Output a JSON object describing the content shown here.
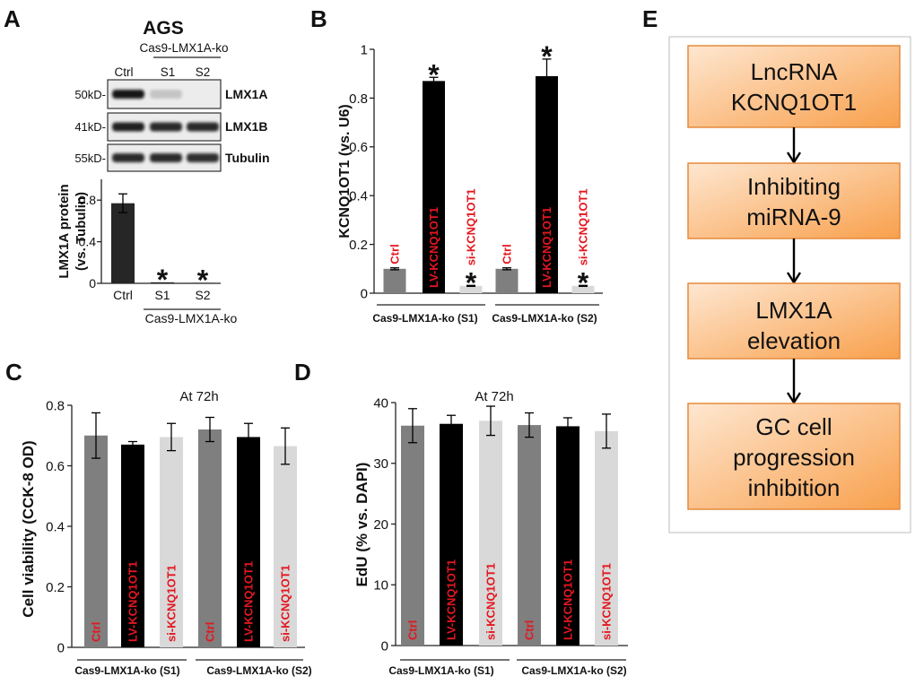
{
  "panel_labels": {
    "a": "A",
    "b": "B",
    "c": "C",
    "d": "D",
    "e": "E"
  },
  "panel_a": {
    "title": "AGS",
    "knockout_label": "Cas9-LMX1A-ko",
    "lanes": [
      "Ctrl",
      "S1",
      "S2"
    ],
    "blot_rows": [
      {
        "marker": "50kD-",
        "protein": "LMX1A",
        "band_intensity": [
          1.0,
          0.18,
          0.0
        ]
      },
      {
        "marker": "41kD-",
        "protein": "LMX1B",
        "band_intensity": [
          0.95,
          0.9,
          0.9
        ]
      },
      {
        "marker": "55kD-",
        "protein": "Tubulin",
        "band_intensity": [
          0.9,
          0.9,
          0.88
        ]
      }
    ]
  },
  "chart_data": [
    {
      "type": "bar",
      "categories": [
        "Ctrl",
        "S1",
        "S2"
      ],
      "values": [
        0.77,
        0.01,
        0.005
      ],
      "errors": [
        0.09,
        0,
        0
      ],
      "significant": [
        false,
        true,
        true
      ],
      "significance_mark": "*",
      "ylabel": [
        "LMX1A protein",
        "(vs. Tubulin)"
      ],
      "ylim": [
        0,
        1.0
      ],
      "yticks": [
        0,
        0.4,
        0.8
      ],
      "ytick_labels": [
        "0",
        "0.4",
        "0.8"
      ],
      "groups": [
        {
          "label": "Cas9-LMX1A-ko",
          "members": [
            1,
            2
          ]
        }
      ],
      "category_label_position": "below-axis",
      "colors": [
        "#262626",
        "#262626",
        "#262626"
      ]
    },
    {
      "type": "bar",
      "categories": [
        "Ctrl",
        "LV-KCNQ1OT1",
        "si-KCNQ1OT1",
        "Ctrl",
        "LV-KCNQ1OT1",
        "si-KCNQ1OT1"
      ],
      "values": [
        0.1,
        0.87,
        0.03,
        0.1,
        0.89,
        0.03
      ],
      "errors": [
        0.004,
        0.015,
        0.002,
        0.004,
        0.07,
        0.002
      ],
      "significant": [
        false,
        true,
        true,
        false,
        true,
        true
      ],
      "significance_mark": "*",
      "ylabel": [
        "KCNQ1OT1 (vs. U6)"
      ],
      "ylim": [
        0,
        1
      ],
      "yticks": [
        0,
        0.2,
        0.4,
        0.6,
        0.8,
        1
      ],
      "ytick_labels": [
        "0",
        "0.2",
        "0.4",
        "0.6",
        "0.8",
        "1"
      ],
      "groups": [
        {
          "label": "Cas9-LMX1A-ko (S1)",
          "members": [
            0,
            1,
            2
          ]
        },
        {
          "label": "Cas9-LMX1A-ko (S2)",
          "members": [
            3,
            4,
            5
          ]
        }
      ],
      "category_label_position": "inside-bar",
      "colors": [
        "#7f7f7f",
        "#000000",
        "#d9d9d9",
        "#7f7f7f",
        "#000000",
        "#d9d9d9"
      ],
      "label_color": "#e3171f"
    },
    {
      "type": "bar",
      "title": "At 72h",
      "categories": [
        "Ctrl",
        "LV-KCNQ1OT1",
        "si-KCNQ1OT1",
        "Ctrl",
        "LV-KCNQ1OT1",
        "si-KCNQ1OT1"
      ],
      "values": [
        0.7,
        0.67,
        0.695,
        0.72,
        0.695,
        0.665
      ],
      "errors": [
        0.075,
        0.01,
        0.045,
        0.04,
        0.045,
        0.06
      ],
      "ylabel": [
        "Cell viability (CCK-8 OD)"
      ],
      "ylim": [
        0,
        0.8
      ],
      "yticks": [
        0,
        0.2,
        0.4,
        0.6,
        0.8
      ],
      "ytick_labels": [
        "0",
        "0.2",
        "0.4",
        "0.6",
        "0.8"
      ],
      "groups": [
        {
          "label": "Cas9-LMX1A-ko (S1)",
          "members": [
            0,
            1,
            2
          ]
        },
        {
          "label": "Cas9-LMX1A-ko (S2)",
          "members": [
            3,
            4,
            5
          ]
        }
      ],
      "category_label_position": "inside-bar",
      "colors": [
        "#7f7f7f",
        "#000000",
        "#d9d9d9",
        "#7f7f7f",
        "#000000",
        "#d9d9d9"
      ],
      "label_color": "#e3171f"
    },
    {
      "type": "bar",
      "title": "At 72h",
      "categories": [
        "Ctrl",
        "LV-KCNQ1OT1",
        "si-KCNQ1OT1",
        "Ctrl",
        "LV-KCNQ1OT1",
        "si-KCNQ1OT1"
      ],
      "values": [
        36.2,
        36.5,
        37.0,
        36.3,
        36.1,
        35.3
      ],
      "errors": [
        2.8,
        1.4,
        2.4,
        2.0,
        1.4,
        2.8
      ],
      "ylabel": [
        "EdU (% vs. DAPI)"
      ],
      "ylim": [
        0,
        40
      ],
      "yticks": [
        0,
        10,
        20,
        30,
        40
      ],
      "ytick_labels": [
        "0",
        "10",
        "20",
        "30",
        "40"
      ],
      "groups": [
        {
          "label": "Cas9-LMX1A-ko (S1)",
          "members": [
            0,
            1,
            2
          ]
        },
        {
          "label": "Cas9-LMX1A-ko (S2)",
          "members": [
            3,
            4,
            5
          ]
        }
      ],
      "category_label_position": "inside-bar",
      "colors": [
        "#7f7f7f",
        "#000000",
        "#d9d9d9",
        "#7f7f7f",
        "#000000",
        "#d9d9d9"
      ],
      "label_color": "#e3171f"
    }
  ],
  "panel_e": {
    "steps": [
      {
        "lines": [
          "LncRNA",
          "KCNQ1OT1"
        ]
      },
      {
        "lines": [
          "Inhibiting",
          "miRNA-9"
        ]
      },
      {
        "lines": [
          "LMX1A",
          "elevation"
        ]
      },
      {
        "lines": [
          "GC cell",
          "progression",
          "inhibition"
        ]
      }
    ],
    "box_color_light": "#fee7d1",
    "box_color_dark": "#f8a04c",
    "box_border": "#e58a3c"
  }
}
